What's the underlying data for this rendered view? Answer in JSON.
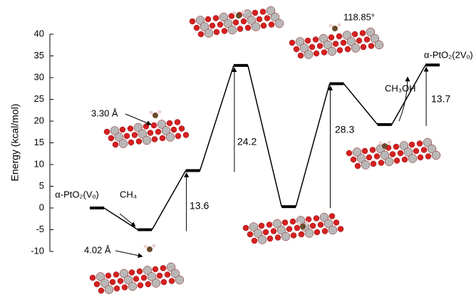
{
  "chart_data": {
    "type": "energy-levels",
    "ylabel": "Energy (kcal/mol)",
    "ylim": [
      -10,
      40
    ],
    "yticks": [
      -10,
      -5,
      0,
      5,
      10,
      15,
      20,
      25,
      30,
      35,
      40
    ],
    "categories": [
      null,
      null,
      null,
      null,
      null,
      null,
      null,
      null
    ],
    "values": [
      0,
      -5,
      8.6,
      32.8,
      0.3,
      28.6,
      19.2,
      32.9
    ],
    "color": "#000000",
    "annotations": [
      13.6,
      24.2,
      28.3,
      13.7
    ],
    "labels": [
      "α-PtO₂(Vₒ)",
      "CH₄",
      "3.30 Å",
      "4.02 Å",
      "118.85°",
      "CH₃OH",
      "α-PtO₂(2Vₒ)"
    ]
  }
}
